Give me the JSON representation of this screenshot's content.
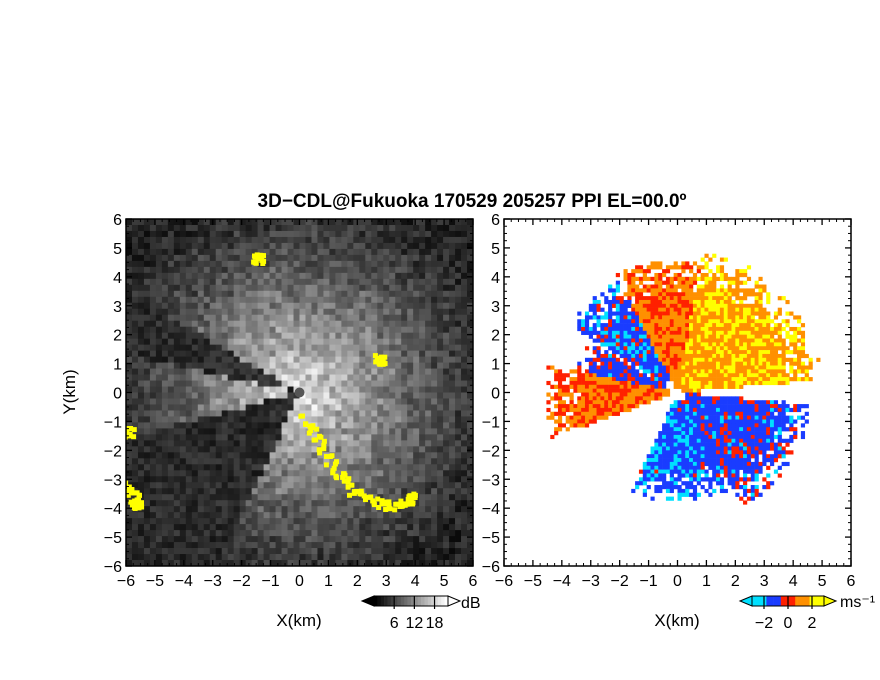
{
  "title": "3D−CDL@Fukuoka 170529 205257 PPI EL=00.0º",
  "chart_data": [
    {
      "type": "heatmap",
      "panel": "reflectivity",
      "xlabel": "X(km)",
      "ylabel": "Y(km)",
      "xlim": [
        -6,
        6
      ],
      "ylim": [
        -6,
        6
      ],
      "xticks": [
        "−6",
        "−5",
        "−4",
        "−3",
        "−2",
        "−1",
        "0",
        "1",
        "2",
        "3",
        "4",
        "5",
        "6"
      ],
      "yticks": [
        "6",
        "5",
        "4",
        "3",
        "2",
        "1",
        "0",
        "−1",
        "−2",
        "−3",
        "−4",
        "−5",
        "−6"
      ],
      "colorbar": {
        "unit": "dB",
        "tick_labels": [
          "6",
          "12",
          "18"
        ],
        "ticks": [
          6,
          12,
          18
        ],
        "range": [
          0,
          22
        ],
        "colors": [
          "#000000",
          "#ffffff"
        ],
        "highlight_color": "#ffff00"
      },
      "highlight_regions": [
        {
          "x": [
            0.1,
            0.6,
            1.2,
            1.8,
            2.5,
            3.2,
            3.8
          ],
          "y": [
            -0.8,
            -1.6,
            -2.6,
            -3.3,
            -3.7,
            -3.9,
            -3.6
          ]
        },
        {
          "x": [
            -5.95,
            -5.7
          ],
          "y": [
            -3.2,
            -3.8
          ]
        },
        {
          "x": [
            -5.95
          ],
          "y": [
            -1.3
          ]
        },
        {
          "x": [
            2.7
          ],
          "y": [
            1.2
          ]
        },
        {
          "x": [
            -1.5
          ],
          "y": [
            4.7
          ]
        }
      ],
      "blank_sectors_deg": [
        [
          195,
          245
        ],
        [
          150,
          168
        ]
      ]
    },
    {
      "type": "heatmap",
      "panel": "doppler_velocity",
      "xlabel": "X(km)",
      "ylabel": "",
      "xlim": [
        -6,
        6
      ],
      "ylim": [
        -6,
        6
      ],
      "xticks": [
        "−6",
        "−5",
        "−4",
        "−3",
        "−2",
        "−1",
        "0",
        "1",
        "2",
        "3",
        "4",
        "5",
        "6"
      ],
      "yticks": [
        "6",
        "5",
        "4",
        "3",
        "2",
        "1",
        "0",
        "−1",
        "−2",
        "−3",
        "−4",
        "−5",
        "−6"
      ],
      "colorbar": {
        "unit": "ms⁻¹",
        "tick_labels": [
          "−2",
          "0",
          "2"
        ],
        "ticks": [
          -2,
          0,
          2
        ],
        "range": [
          -3,
          3
        ],
        "colors": [
          "#00e0ff",
          "#1a3cff",
          "#ff2000",
          "#ff9000",
          "#ffff00"
        ]
      },
      "regions": [
        {
          "sector_deg": [
            5,
            80
          ],
          "r_km": [
            0.2,
            5.0
          ],
          "velocity": 2.0
        },
        {
          "sector_deg": [
            80,
            118
          ],
          "r_km": [
            0.2,
            4.6
          ],
          "velocity": 1.0
        },
        {
          "sector_deg": [
            118,
            148
          ],
          "r_km": [
            0.5,
            4.4
          ],
          "velocity": -1.6
        },
        {
          "sector_deg": [
            150,
            168
          ],
          "r_km": [
            0.3,
            3.6
          ],
          "velocity": -1.2
        },
        {
          "sector_deg": [
            168,
            200
          ],
          "r_km": [
            0.3,
            4.6
          ],
          "velocity": 0.8
        },
        {
          "sector_deg": [
            245,
            300
          ],
          "r_km": [
            0.3,
            3.8
          ],
          "velocity": -1.8
        },
        {
          "sector_deg": [
            300,
            355
          ],
          "r_km": [
            0.3,
            4.6
          ],
          "velocity": -1.3
        }
      ]
    }
  ]
}
